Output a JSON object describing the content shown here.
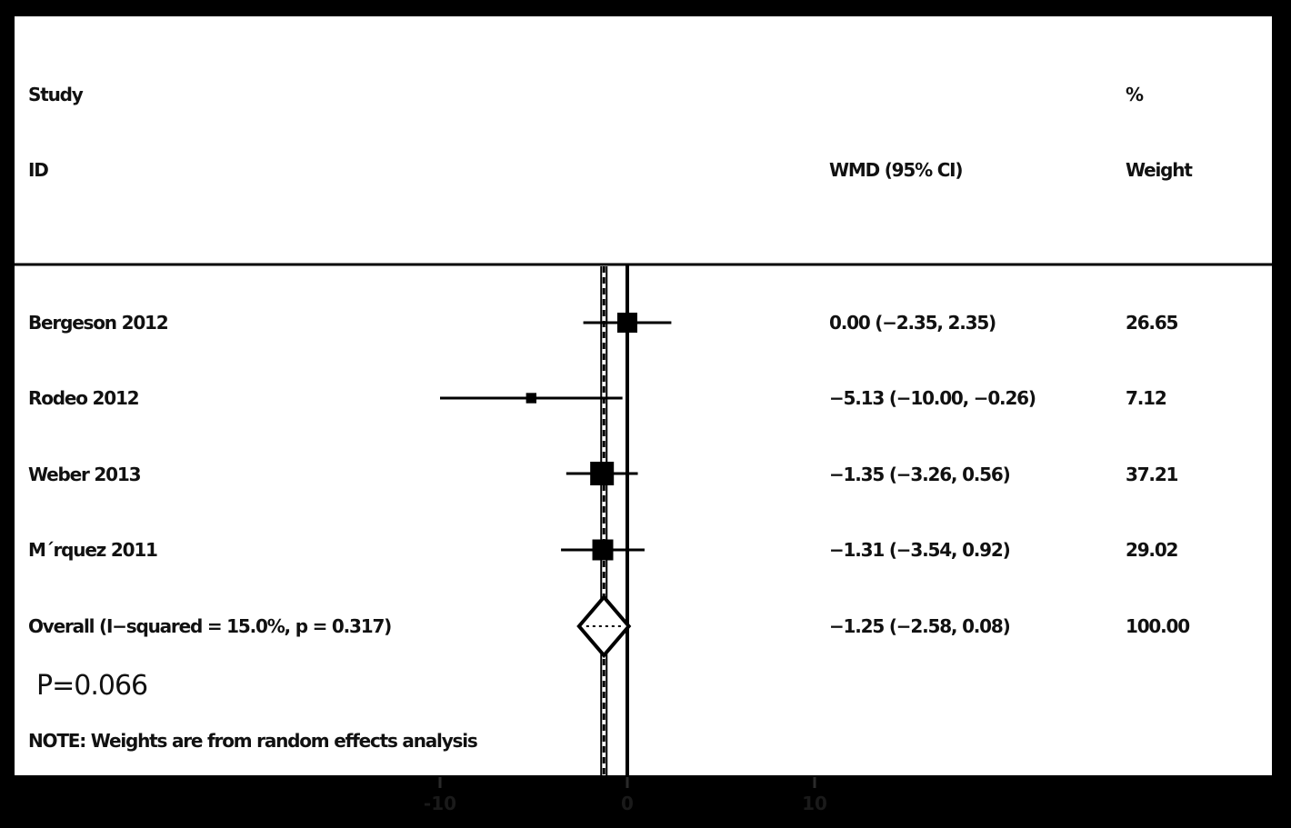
{
  "header": {
    "study_line1": "Study",
    "study_line2": "ID",
    "effect_label": "WMD (95% CI)",
    "weight_line1": "%",
    "weight_line2": "Weight"
  },
  "stats_note": "P=0.066",
  "footnote": "NOTE: Weights are from random effects analysis",
  "chart_data": {
    "type": "forest",
    "measure": "WMD (95% CI)",
    "x_ticks": [
      "-10",
      "0",
      "10"
    ],
    "xlim": [
      -10,
      10
    ],
    "null_line": 0,
    "overall_line": -1.25,
    "studies": [
      {
        "id": "Bergeson 2012",
        "wmd": 0.0,
        "lo": -2.35,
        "hi": 2.35,
        "ci_text": "0.00 (−2.35, 2.35)",
        "weight": 26.65,
        "weight_text": "26.65"
      },
      {
        "id": "Rodeo 2012",
        "wmd": -5.13,
        "lo": -10.0,
        "hi": -0.26,
        "ci_text": "−5.13 (−10.00, −0.26)",
        "weight": 7.12,
        "weight_text": "7.12"
      },
      {
        "id": "Weber 2013",
        "wmd": -1.35,
        "lo": -3.26,
        "hi": 0.56,
        "ci_text": "−1.35 (−3.26, 0.56)",
        "weight": 37.21,
        "weight_text": "37.21"
      },
      {
        "id": "M´rquez 2011",
        "wmd": -1.31,
        "lo": -3.54,
        "hi": 0.92,
        "ci_text": "−1.31 (−3.54, 0.92)",
        "weight": 29.02,
        "weight_text": "29.02"
      }
    ],
    "overall": {
      "label": "Overall  (I−squared = 15.0%, p = 0.317)",
      "wmd": -1.25,
      "lo": -2.58,
      "hi": 0.08,
      "ci_text": "−1.25 (−2.58, 0.08)",
      "weight_text": "100.00"
    }
  }
}
